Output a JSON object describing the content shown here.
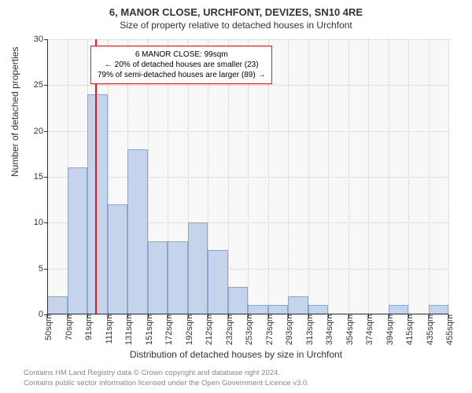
{
  "header": {
    "line1": "6, MANOR CLOSE, URCHFONT, DEVIZES, SN10 4RE",
    "line2": "Size of property relative to detached houses in Urchfont"
  },
  "chart": {
    "type": "histogram",
    "ylabel": "Number of detached properties",
    "xlabel": "Distribution of detached houses by size in Urchfont",
    "background_color": "#f8f8f8",
    "grid_color": "#cccccc",
    "bar_fill": "#c5d4ea",
    "bar_stroke": "#8aa5cf",
    "ref_line_color": "#e02020",
    "ylim": [
      0,
      30
    ],
    "yticks": [
      0,
      5,
      10,
      15,
      20,
      25,
      30
    ],
    "xticks": [
      "50sqm",
      "70sqm",
      "91sqm",
      "111sqm",
      "131sqm",
      "151sqm",
      "172sqm",
      "192sqm",
      "212sqm",
      "232sqm",
      "253sqm",
      "273sqm",
      "293sqm",
      "313sqm",
      "334sqm",
      "354sqm",
      "374sqm",
      "394sqm",
      "415sqm",
      "435sqm",
      "455sqm"
    ],
    "values": [
      2,
      16,
      24,
      12,
      18,
      8,
      8,
      10,
      7,
      3,
      1,
      1,
      2,
      1,
      0,
      0,
      0,
      1,
      0,
      1
    ],
    "ref_line_position": 2.4,
    "annotation": {
      "border_color": "#e02020",
      "line1": "6 MANOR CLOSE: 99sqm",
      "line2": "← 20% of detached houses are smaller (23)",
      "line3": "79% of semi-detached houses are larger (89) →"
    }
  },
  "footer": {
    "line1": "Contains HM Land Registry data © Crown copyright and database right 2024.",
    "line2": "Contains public sector information licensed under the Open Government Licence v3.0."
  }
}
